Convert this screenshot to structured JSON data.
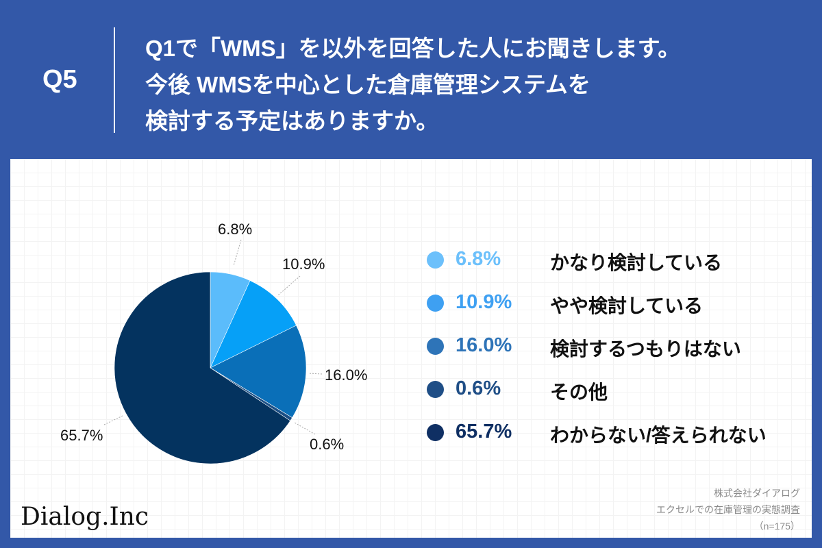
{
  "header": {
    "question_id": "Q5",
    "title_lines": [
      "Q1で「WMS」を以外を回答した人にお聞きします。",
      "今後  WMSを中心とした倉庫管理システムを",
      "検討する予定はありますか。"
    ]
  },
  "chart_data": {
    "type": "pie",
    "title": "今後 WMSを中心とした倉庫管理システムを検討する予定はありますか。",
    "categories": [
      "かなり検討している",
      "やや検討している",
      "検討するつもりはない",
      "その他",
      "わからない/答えられない"
    ],
    "values": [
      6.8,
      10.9,
      16.0,
      0.6,
      65.7
    ],
    "labels": [
      "6.8%",
      "10.9%",
      "16.0%",
      "0.6%",
      "65.7%"
    ],
    "colors": [
      "#5bbcfb",
      "#06a0f7",
      "#0a6fb8",
      "#1c4f85",
      "#04335f"
    ],
    "legend_colors": [
      "#6cc0fb",
      "#3ea0f2",
      "#2e74b8",
      "#1f4e86",
      "#0f2f63"
    ],
    "start_angle": "12 o'clock, clockwise",
    "legend_position": "right"
  },
  "legend": [
    {
      "value": "6.8%",
      "label": "かなり検討している"
    },
    {
      "value": "10.9%",
      "label": "やや検討している"
    },
    {
      "value": "16.0%",
      "label": "検討するつもりはない"
    },
    {
      "value": "0.6%",
      "label": "その他"
    },
    {
      "value": "65.7%",
      "label": "わからない/答えられない"
    }
  ],
  "footer": {
    "logo": "Dialog.Inc",
    "source_lines": [
      "株式会社ダイアログ",
      "エクセルでの在庫管理の実態調査",
      "（n=175）"
    ]
  }
}
